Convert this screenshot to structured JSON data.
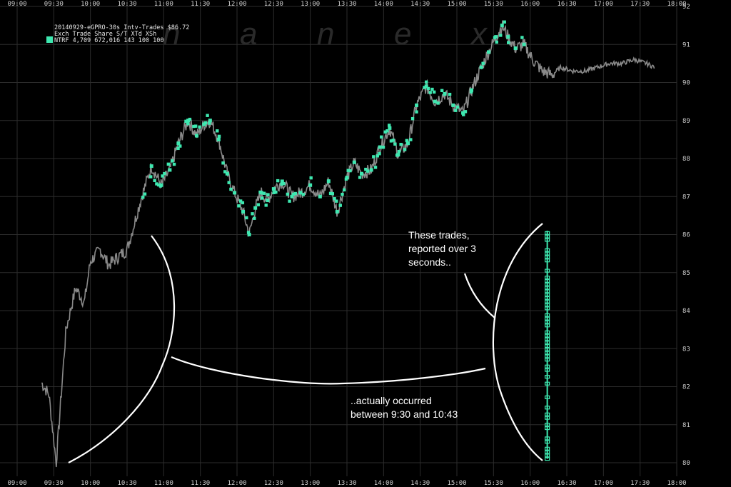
{
  "watermark": [
    "n",
    "a",
    "n",
    "e",
    "x"
  ],
  "header": {
    "line1": "20140929-eGPRO-30s Intv-Trades $86.72",
    "line2": "Exch Trade   Share  S/T  XTd XSh",
    "line3": "NTRF 4,709 672,016   143 100 100",
    "swatch_color": "#3ee8b0"
  },
  "annotations": {
    "reported_lines": [
      "These trades,",
      "reported over 3",
      "seconds.."
    ],
    "occurred_lines": [
      "..actually occurred",
      "between 9:30 and 10:43"
    ]
  },
  "chart_data": {
    "type": "line",
    "title": "20140929-eGPRO-30s Intv-Trades $86.72",
    "x_ticks": [
      "09:00",
      "09:30",
      "10:00",
      "10:30",
      "11:00",
      "11:30",
      "12:00",
      "12:30",
      "13:00",
      "13:30",
      "14:00",
      "14:30",
      "15:00",
      "15:30",
      "16:00",
      "16:30",
      "17:00",
      "17:30",
      "18:00"
    ],
    "y_ticks": [
      80,
      81,
      82,
      83,
      84,
      85,
      86,
      87,
      88,
      89,
      90,
      91,
      92
    ],
    "ylim": [
      80,
      92
    ],
    "xlim": [
      "09:00",
      "18:00"
    ],
    "grid": true,
    "colors": {
      "other_trades": "#8a8a8a",
      "ntrf_trades": "#3ee8b0",
      "background": "#000000",
      "grid": "#2c2c2c"
    },
    "series": [
      {
        "name": "NTRF",
        "x": [
          "09:20",
          "09:26",
          "09:32",
          "09:40",
          "09:48",
          "09:55",
          "10:00",
          "10:08",
          "10:15",
          "10:22",
          "10:30",
          "10:36",
          "10:42",
          "10:50",
          "10:58",
          "11:05",
          "11:12",
          "11:20",
          "11:27",
          "11:33",
          "11:38",
          "11:45",
          "11:52",
          "11:58",
          "12:05",
          "12:10",
          "12:15",
          "12:20",
          "12:25",
          "12:30",
          "12:37",
          "12:45",
          "12:52",
          "13:00",
          "13:08",
          "13:15",
          "13:22",
          "13:30",
          "13:36",
          "13:42",
          "13:50",
          "13:57",
          "14:05",
          "14:12",
          "14:20",
          "14:27",
          "14:35",
          "14:42",
          "14:50",
          "14:57",
          "15:05",
          "15:12",
          "15:20",
          "15:26",
          "15:32",
          "15:37",
          "15:42",
          "15:48",
          "15:55",
          "16:02",
          "16:10",
          "16:18",
          "16:25",
          "16:35",
          "16:45",
          "16:55",
          "17:05",
          "17:15",
          "17:25",
          "17:35",
          "17:42"
        ],
        "values": [
          82.1,
          81.8,
          80.0,
          83.5,
          84.6,
          84.2,
          85.3,
          85.6,
          85.2,
          85.4,
          85.6,
          86.3,
          87.0,
          87.8,
          87.3,
          87.7,
          88.4,
          89.0,
          88.6,
          88.9,
          89.0,
          88.5,
          87.6,
          87.1,
          86.6,
          86.0,
          86.7,
          87.1,
          86.9,
          87.2,
          87.4,
          87.0,
          87.1,
          87.3,
          87.0,
          87.4,
          86.6,
          87.5,
          87.9,
          87.6,
          87.7,
          88.3,
          88.8,
          88.1,
          88.4,
          89.4,
          89.9,
          89.5,
          89.7,
          89.4,
          89.2,
          89.8,
          90.4,
          90.8,
          91.2,
          91.5,
          91.2,
          90.9,
          91.0,
          90.6,
          90.3,
          90.2,
          90.4,
          90.3,
          90.3,
          90.4,
          90.5,
          90.5,
          90.6,
          90.5,
          90.4
        ]
      }
    ]
  }
}
